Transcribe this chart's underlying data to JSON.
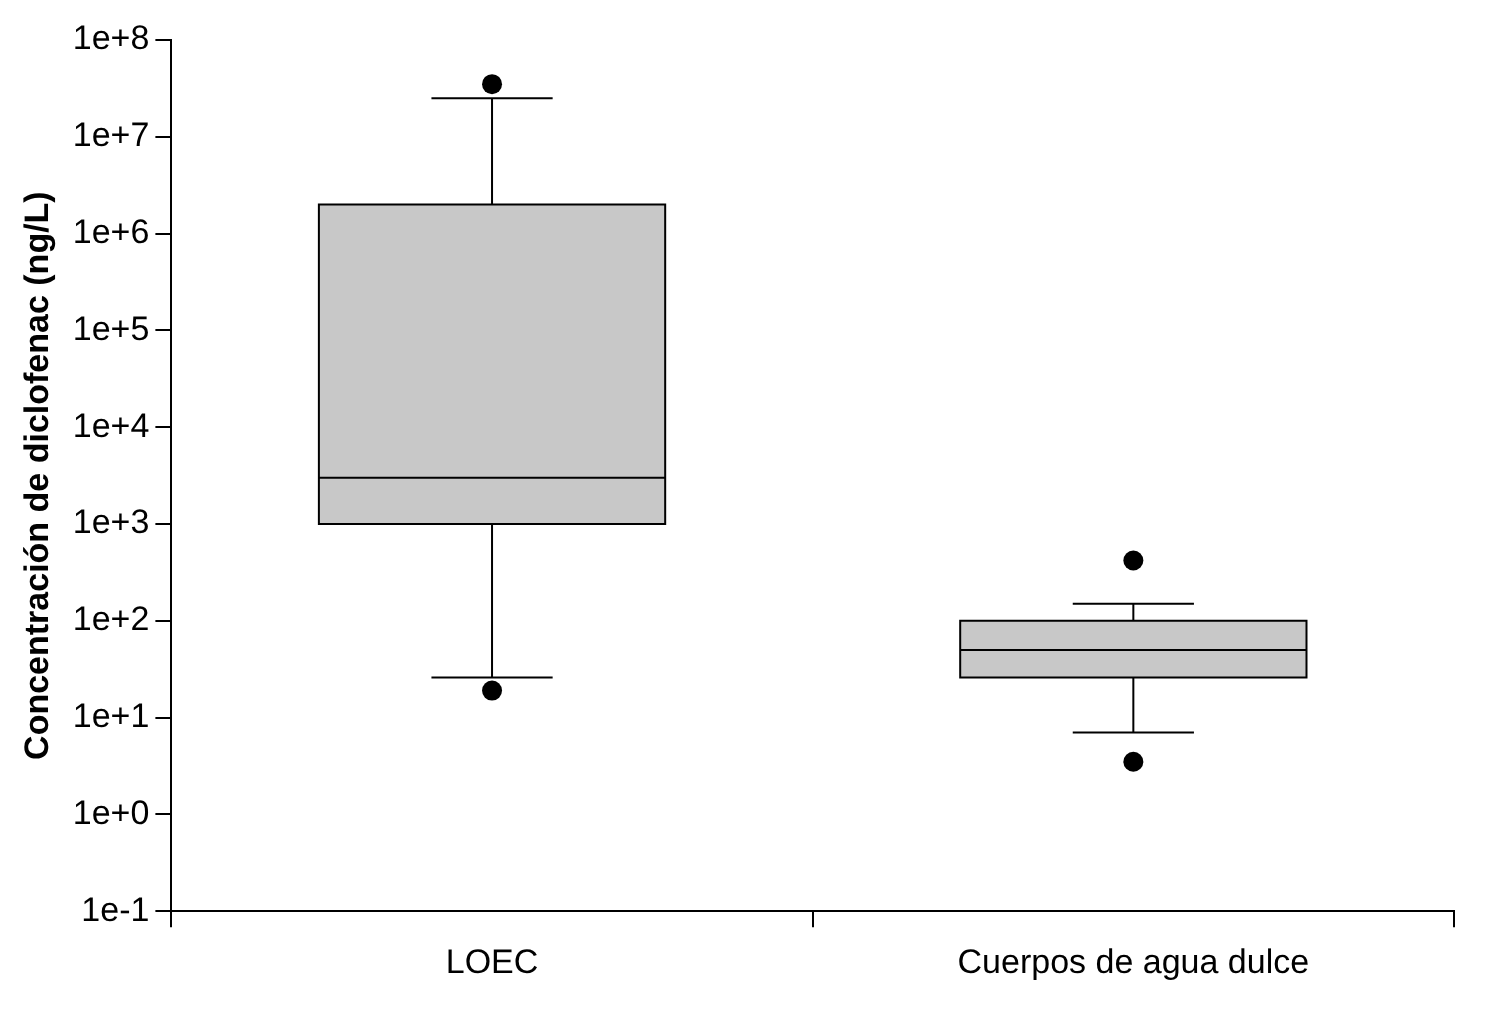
{
  "chart_data": {
    "type": "box",
    "ylabel": "Concentración de diclofenac (ng/L)",
    "categories": [
      "LOEC",
      "Cuerpos de agua dulce"
    ],
    "color": "#c8c8c8",
    "log": "y",
    "ylim": [
      0.1,
      100000000
    ],
    "yticks": [
      {
        "value": 0.1,
        "label": "1e-1"
      },
      {
        "value": 1,
        "label": "1e+0"
      },
      {
        "value": 10,
        "label": "1e+1"
      },
      {
        "value": 100,
        "label": "1e+2"
      },
      {
        "value": 1000,
        "label": "1e+3"
      },
      {
        "value": 10000,
        "label": "1e+4"
      },
      {
        "value": 100000,
        "label": "1e+5"
      },
      {
        "value": 1000000,
        "label": "1e+6"
      },
      {
        "value": 10000000,
        "label": "1e+7"
      },
      {
        "value": 100000000,
        "label": "1e+8"
      }
    ],
    "boxes": [
      {
        "low": 26,
        "q1": 1000,
        "median": 3000,
        "q3": 2000000,
        "high": 25000000,
        "outliers": [
          19,
          35000000
        ]
      },
      {
        "low": 7,
        "q1": 26,
        "median": 50,
        "q3": 100,
        "high": 150,
        "outliers": [
          3.5,
          420
        ]
      }
    ],
    "grid": false,
    "legend": false
  }
}
